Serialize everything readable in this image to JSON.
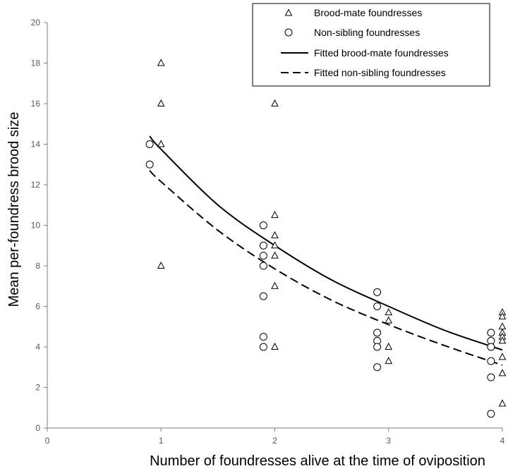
{
  "chart_data": {
    "type": "scatter",
    "xlabel": "Number of foundresses alive at the time of oviposition",
    "ylabel": "Mean per-foundress brood size",
    "xlim": [
      0,
      4
    ],
    "ylim": [
      0,
      20
    ],
    "xticks": [
      "0",
      "1",
      "2",
      "3",
      "4"
    ],
    "yticks": [
      "0",
      "2",
      "4",
      "6",
      "8",
      "10",
      "12",
      "14",
      "16",
      "18",
      "20"
    ],
    "grid": false,
    "legend_position": "top-right",
    "legend": [
      {
        "label": "Brood-mate foundresses",
        "marker": "triangle"
      },
      {
        "label": "Non-sibling foundresses",
        "marker": "circle"
      },
      {
        "label": "Fitted brood-mate foundresses",
        "line": "solid"
      },
      {
        "label": "Fitted non-sibling foundresses",
        "line": "dashed"
      }
    ],
    "series": [
      {
        "name": "Brood-mate foundresses",
        "kind": "points",
        "marker": "triangle",
        "points": [
          [
            1,
            18
          ],
          [
            1,
            16
          ],
          [
            1,
            14
          ],
          [
            1,
            8
          ],
          [
            2,
            16
          ],
          [
            2,
            10.5
          ],
          [
            2,
            9.5
          ],
          [
            2,
            9
          ],
          [
            2,
            8.5
          ],
          [
            2,
            7
          ],
          [
            2,
            4
          ],
          [
            3,
            5.7
          ],
          [
            3,
            5.3
          ],
          [
            3,
            4
          ],
          [
            3,
            3.3
          ],
          [
            4,
            5.7
          ],
          [
            4,
            5.5
          ],
          [
            4,
            5
          ],
          [
            4,
            4.7
          ],
          [
            4,
            4.5
          ],
          [
            4,
            4.3
          ],
          [
            4,
            3.5
          ],
          [
            4,
            2.7
          ],
          [
            4,
            1.2
          ]
        ]
      },
      {
        "name": "Non-sibling foundresses",
        "kind": "points",
        "marker": "circle",
        "points": [
          [
            0.9,
            14
          ],
          [
            0.9,
            13
          ],
          [
            1.9,
            10
          ],
          [
            1.9,
            9
          ],
          [
            1.9,
            8.5
          ],
          [
            1.9,
            8
          ],
          [
            1.9,
            6.5
          ],
          [
            1.9,
            4.5
          ],
          [
            1.9,
            4
          ],
          [
            2.9,
            6.7
          ],
          [
            2.9,
            6
          ],
          [
            2.9,
            4.7
          ],
          [
            2.9,
            4.3
          ],
          [
            2.9,
            4
          ],
          [
            2.9,
            3
          ],
          [
            3.9,
            4.7
          ],
          [
            3.9,
            4.3
          ],
          [
            3.9,
            4
          ],
          [
            3.9,
            3.3
          ],
          [
            3.9,
            2.5
          ],
          [
            3.9,
            0.7
          ]
        ]
      },
      {
        "name": "Fitted brood-mate foundresses",
        "kind": "line",
        "style": "solid",
        "points": [
          [
            0.9,
            14.4
          ],
          [
            1,
            13.75
          ],
          [
            1.5,
            11
          ],
          [
            2,
            9
          ],
          [
            2.5,
            7.3
          ],
          [
            3,
            6
          ],
          [
            3.5,
            4.8
          ],
          [
            4,
            3.85
          ]
        ]
      },
      {
        "name": "Fitted non-sibling foundresses",
        "kind": "line",
        "style": "dashed",
        "points": [
          [
            0.9,
            12.7
          ],
          [
            1,
            12.15
          ],
          [
            1.5,
            9.75
          ],
          [
            2,
            7.85
          ],
          [
            2.5,
            6.3
          ],
          [
            3,
            5.1
          ],
          [
            3.5,
            4.05
          ],
          [
            4,
            3.1
          ]
        ]
      }
    ]
  }
}
